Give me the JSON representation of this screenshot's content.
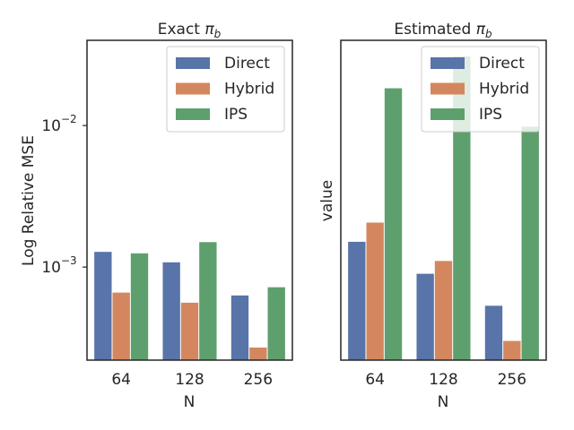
{
  "colors": {
    "Direct": "#5874a8",
    "Hybrid": "#d4875f",
    "IPS": "#5ea06d",
    "axis": "#262626"
  },
  "chart_data": [
    {
      "type": "bar",
      "title": "Exact π_b",
      "title_main": "Exact ",
      "title_pi": "π",
      "title_sub": "b",
      "xlabel": "N",
      "ylabel": "Log Relative MSE",
      "yscale": "log",
      "ylim": [
        0.00022,
        0.04
      ],
      "yticks": [
        {
          "value": 0.001,
          "base": "10",
          "exp": "−3"
        },
        {
          "value": 0.01,
          "base": "10",
          "exp": "−2"
        }
      ],
      "categories": [
        "64",
        "128",
        "256"
      ],
      "series": [
        {
          "name": "Direct",
          "values": [
            0.00128,
            0.00108,
            0.00063
          ]
        },
        {
          "name": "Hybrid",
          "values": [
            0.00066,
            0.00056,
            0.00027
          ]
        },
        {
          "name": "IPS",
          "values": [
            0.00125,
            0.0015,
            0.00072
          ]
        }
      ],
      "legend": {
        "location": "top-right",
        "entries": [
          "Direct",
          "Hybrid",
          "IPS"
        ]
      }
    },
    {
      "type": "bar",
      "title": "Estimated π_b",
      "title_main": "Estimated ",
      "title_pi": "π",
      "title_sub": "b",
      "xlabel": "N",
      "ylabel": "value",
      "yscale": "linear",
      "ylim": [
        0,
        1.0
      ],
      "yticks": [],
      "categories": [
        "64",
        "128",
        "256"
      ],
      "series": [
        {
          "name": "Direct",
          "values": [
            0.37,
            0.27,
            0.17
          ]
        },
        {
          "name": "Hybrid",
          "values": [
            0.43,
            0.31,
            0.06
          ]
        },
        {
          "name": "IPS",
          "values": [
            0.85,
            0.95,
            0.73
          ]
        }
      ],
      "legend": {
        "location": "top-right",
        "entries": [
          "Direct",
          "Hybrid",
          "IPS"
        ]
      }
    }
  ]
}
